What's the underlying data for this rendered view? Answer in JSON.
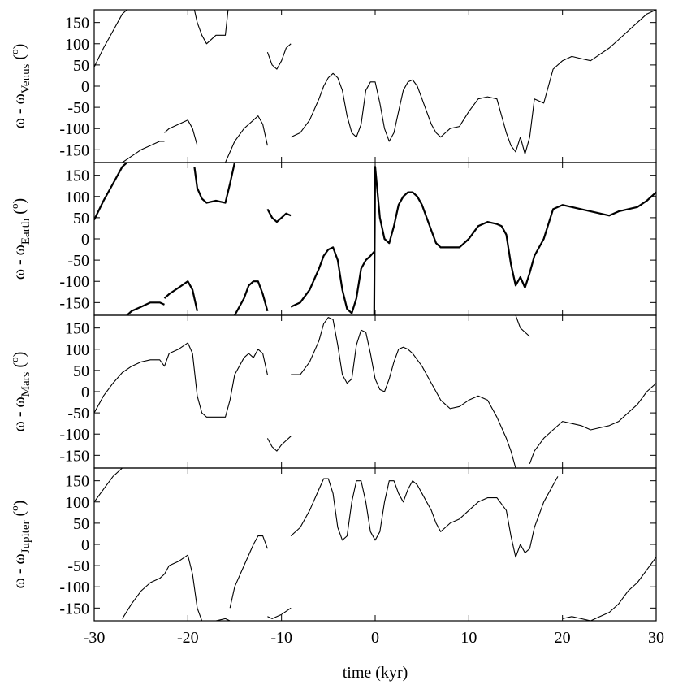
{
  "chart_data": {
    "type": "line",
    "xlabel": "time (kyr)",
    "xlim": [
      -30,
      30
    ],
    "x_ticks": [
      -30,
      -20,
      -10,
      0,
      10,
      20,
      30
    ],
    "ylim": [
      -180,
      180
    ],
    "y_ticks": [
      150,
      100,
      50,
      0,
      -50,
      -100,
      -150
    ],
    "colors": {
      "line": "#000000",
      "axis": "#000000",
      "background": "#ffffff"
    },
    "panels": [
      {
        "ylabel_main": "ω - ω",
        "ylabel_sub": "Venus",
        "ylabel_unit": " (",
        "ylabel_deg": "o",
        "ylabel_close": ")",
        "series": [
          {
            "x": [
              -30,
              -29,
              -28,
              -27,
              -26.5
            ],
            "y": [
              45,
              90,
              130,
              170,
              180
            ]
          },
          {
            "x": [
              -27,
              -26,
              -25,
              -24,
              -23,
              -22.5
            ],
            "y": [
              -180,
              -165,
              -150,
              -140,
              -130,
              -130
            ]
          },
          {
            "x": [
              -22.5,
              -22,
              -21,
              -20,
              -19.5,
              -19
            ],
            "y": [
              -110,
              -100,
              -90,
              -80,
              -100,
              -140
            ]
          },
          {
            "x": [
              -19.3,
              -19,
              -18.5,
              -18,
              -17,
              -16,
              -15.7
            ],
            "y": [
              180,
              150,
              120,
              100,
              120,
              120,
              180
            ]
          },
          {
            "x": [
              -16,
              -15,
              -14,
              -13.5,
              -13,
              -12.5,
              -12,
              -11.5
            ],
            "y": [
              -180,
              -130,
              -100,
              -90,
              -80,
              -70,
              -90,
              -140
            ]
          },
          {
            "x": [
              -11.5,
              -11,
              -10.5,
              -10,
              -9.5,
              -9
            ],
            "y": [
              80,
              50,
              40,
              60,
              90,
              100
            ]
          },
          {
            "x": [
              -9,
              -8,
              -7,
              -6,
              -5.5,
              -5,
              -4.5,
              -4,
              -3.5,
              -3,
              -2.5,
              -2,
              -1.5,
              -1,
              -0.5,
              0,
              0.5,
              1,
              1.5,
              2,
              2.5,
              3,
              3.5,
              4,
              4.5,
              5,
              5.5,
              6,
              6.5,
              7,
              7.5,
              8,
              9,
              10,
              11,
              12,
              13,
              14,
              14.5,
              15,
              15.5,
              16,
              16.5,
              17,
              18,
              19,
              20,
              21,
              22,
              23,
              24,
              25,
              26,
              27,
              28,
              29,
              30
            ],
            "y": [
              -120,
              -110,
              -80,
              -30,
              0,
              20,
              30,
              20,
              -10,
              -70,
              -110,
              -120,
              -90,
              -10,
              10,
              10,
              -40,
              -100,
              -130,
              -110,
              -60,
              -10,
              10,
              15,
              0,
              -30,
              -60,
              -90,
              -110,
              -120,
              -110,
              -100,
              -95,
              -60,
              -30,
              -25,
              -30,
              -110,
              -140,
              -155,
              -120,
              -160,
              -120,
              -30,
              -40,
              40,
              60,
              70,
              65,
              60,
              75,
              90,
              110,
              130,
              150,
              170,
              180
            ]
          }
        ]
      },
      {
        "ylabel_main": "ω - ω",
        "ylabel_sub": "Earth",
        "ylabel_unit": " (",
        "ylabel_deg": "o",
        "ylabel_close": ")",
        "series": [
          {
            "x": [
              -30,
              -29,
              -28,
              -27,
              -26.5
            ],
            "y": [
              45,
              90,
              130,
              170,
              180
            ]
          },
          {
            "x": [
              -26.5,
              -26,
              -25,
              -24,
              -23,
              -22.5
            ],
            "y": [
              -180,
              -170,
              -160,
              -150,
              -150,
              -155
            ]
          },
          {
            "x": [
              -22.5,
              -22,
              -21,
              -20,
              -19.5,
              -19
            ],
            "y": [
              -140,
              -130,
              -115,
              -100,
              -120,
              -170
            ]
          },
          {
            "x": [
              -19.3,
              -19,
              -18.5,
              -18,
              -17,
              -16,
              -15.5,
              -15
            ],
            "y": [
              170,
              120,
              95,
              85,
              90,
              85,
              130,
              180
            ]
          },
          {
            "x": [
              -15,
              -14,
              -13.5,
              -13,
              -12.5,
              -12,
              -11.5
            ],
            "y": [
              -180,
              -140,
              -110,
              -100,
              -100,
              -130,
              -170
            ]
          },
          {
            "x": [
              -11.5,
              -11,
              -10.5,
              -10,
              -9.5,
              -9
            ],
            "y": [
              70,
              50,
              40,
              50,
              60,
              55
            ]
          },
          {
            "x": [
              -9,
              -8,
              -7,
              -6,
              -5.5,
              -5,
              -4.5,
              -4,
              -3.5,
              -3,
              -2.5,
              -2,
              -1.5,
              -1,
              -0.5,
              -0.1
            ],
            "y": [
              -160,
              -150,
              -120,
              -70,
              -40,
              -25,
              -20,
              -50,
              -120,
              -165,
              -175,
              -140,
              -70,
              -50,
              -40,
              -30
            ]
          },
          {
            "x": [
              -0.1,
              0,
              0.5,
              1,
              1.5,
              2,
              2.5,
              3,
              3.5,
              4,
              4.5,
              5,
              5.5,
              6,
              6.5,
              7,
              7.5,
              8,
              9,
              10,
              11,
              12,
              13,
              13.5,
              14,
              14.5,
              15,
              15.5,
              16,
              16.5,
              17,
              18,
              19,
              20,
              21,
              22,
              23,
              24,
              25,
              26,
              27,
              28,
              29,
              30
            ],
            "y": [
              -180,
              170,
              50,
              0,
              -10,
              30,
              80,
              100,
              110,
              110,
              100,
              80,
              50,
              20,
              -10,
              -20,
              -20,
              -20,
              -20,
              0,
              30,
              40,
              35,
              30,
              10,
              -60,
              -110,
              -90,
              -115,
              -80,
              -40,
              0,
              70,
              80,
              75,
              70,
              65,
              60,
              55,
              65,
              70,
              75,
              90,
              110
            ]
          }
        ]
      },
      {
        "ylabel_main": "ω - ω",
        "ylabel_sub": "Mars",
        "ylabel_unit": " (",
        "ylabel_deg": "o",
        "ylabel_close": ")",
        "series": [
          {
            "x": [
              -30,
              -29,
              -28,
              -27,
              -26,
              -25,
              -24,
              -23,
              -22.5,
              -22,
              -21,
              -20,
              -19.5,
              -19,
              -18.5,
              -18,
              -17,
              -16,
              -15.5,
              -15,
              -14,
              -13.5,
              -13,
              -12.5,
              -12,
              -11.5
            ],
            "y": [
              -50,
              -10,
              20,
              45,
              60,
              70,
              75,
              75,
              60,
              90,
              100,
              115,
              90,
              -10,
              -50,
              -60,
              -60,
              -60,
              -20,
              40,
              80,
              90,
              80,
              100,
              90,
              40
            ]
          },
          {
            "x": [
              -11.5,
              -11,
              -10.5,
              -10,
              -9.5,
              -9
            ],
            "y": [
              -110,
              -130,
              -140,
              -125,
              -115,
              -105
            ]
          },
          {
            "x": [
              -9,
              -8,
              -7,
              -6,
              -5.5,
              -5,
              -4.5,
              -4,
              -3.5,
              -3,
              -2.5,
              -2,
              -1.5,
              -1,
              -0.5,
              0,
              0.5,
              1,
              1.5,
              2,
              2.5,
              3,
              3.5,
              4,
              4.5,
              5,
              5.5,
              6,
              6.5,
              7,
              7.5,
              8,
              9,
              10,
              11,
              12,
              13,
              14,
              14.5,
              15
            ],
            "y": [
              40,
              40,
              70,
              120,
              160,
              175,
              170,
              110,
              40,
              20,
              30,
              110,
              145,
              140,
              90,
              30,
              5,
              0,
              30,
              70,
              100,
              105,
              100,
              90,
              75,
              60,
              40,
              20,
              0,
              -20,
              -30,
              -40,
              -35,
              -20,
              -10,
              -20,
              -60,
              -110,
              -140,
              -180
            ]
          },
          {
            "x": [
              15,
              15.5,
              16,
              16.5
            ],
            "y": [
              180,
              150,
              140,
              130
            ]
          },
          {
            "x": [
              16.5,
              17,
              18,
              19,
              20,
              21,
              22,
              23,
              24,
              25,
              26,
              27,
              28,
              29,
              30
            ],
            "y": [
              -170,
              -140,
              -110,
              -90,
              -70,
              -75,
              -80,
              -90,
              -85,
              -80,
              -70,
              -50,
              -30,
              0,
              20
            ]
          }
        ]
      },
      {
        "ylabel_main": "ω - ω",
        "ylabel_sub": "Jupiter",
        "ylabel_unit": " (",
        "ylabel_deg": "o",
        "ylabel_close": ")",
        "series": [
          {
            "x": [
              -30,
              -29,
              -28,
              -27,
              -26.8
            ],
            "y": [
              100,
              130,
              160,
              180,
              180
            ]
          },
          {
            "x": [
              -27,
              -26,
              -25,
              -24,
              -23,
              -22.5,
              -22,
              -21,
              -20,
              -19.5,
              -19,
              -18.5,
              -18,
              -17,
              -16,
              -15.5
            ],
            "y": [
              -175,
              -140,
              -110,
              -90,
              -80,
              -70,
              -50,
              -40,
              -25,
              -70,
              -150,
              -180,
              -180,
              -180,
              -175,
              -180
            ]
          },
          {
            "x": [
              -15.5,
              -15,
              -14,
              -13,
              -12.5,
              -12,
              -11.5
            ],
            "y": [
              -150,
              -100,
              -50,
              0,
              20,
              20,
              -10
            ]
          },
          {
            "x": [
              -11.5,
              -11,
              -10,
              -9
            ],
            "y": [
              -170,
              -175,
              -165,
              -150
            ]
          },
          {
            "x": [
              -9,
              -8,
              -7,
              -6,
              -5.5,
              -5,
              -4.5,
              -4,
              -3.5,
              -3,
              -2.5,
              -2,
              -1.5,
              -1,
              -0.5,
              0,
              0.5,
              1,
              1.5,
              2,
              2.5,
              3,
              3.5,
              4,
              4.5,
              5,
              5.5,
              6,
              6.5,
              7,
              7.5,
              8,
              9,
              10,
              11,
              12,
              13,
              14,
              14.5,
              15,
              15.5,
              16,
              16.5,
              17,
              18,
              19,
              19.5
            ],
            "y": [
              20,
              40,
              80,
              130,
              155,
              155,
              120,
              40,
              10,
              20,
              100,
              150,
              150,
              100,
              30,
              10,
              30,
              100,
              150,
              150,
              120,
              100,
              130,
              150,
              140,
              120,
              100,
              80,
              50,
              30,
              40,
              50,
              60,
              80,
              100,
              110,
              110,
              80,
              20,
              -30,
              0,
              -20,
              -10,
              40,
              100,
              140,
              160
            ]
          },
          {
            "x": [
              20,
              21,
              22,
              23,
              24,
              25,
              26,
              27,
              28,
              29,
              30
            ],
            "y": [
              -175,
              -170,
              -175,
              -180,
              -170,
              -160,
              -140,
              -110,
              -90,
              -60,
              -30
            ]
          }
        ]
      }
    ]
  }
}
